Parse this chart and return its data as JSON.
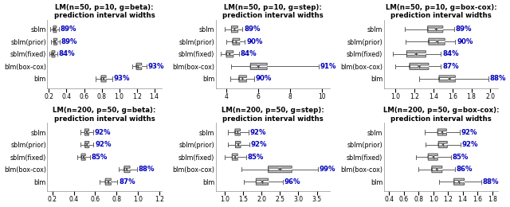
{
  "panels": [
    {
      "title": "LM(n=50, p=10, g=beta):\nprediction interval widths",
      "xlim": [
        0.18,
        1.48
      ],
      "xticks": [
        0.2,
        0.4,
        0.6,
        0.8,
        1.0,
        1.2,
        1.4
      ],
      "rows": [
        {
          "label": "sblm",
          "pct": "89%",
          "med": 0.265,
          "q1": 0.25,
          "q3": 0.285,
          "whislo": 0.218,
          "whishi": 0.31
        },
        {
          "label": "sblm(prior)",
          "pct": "89%",
          "med": 0.27,
          "q1": 0.255,
          "q3": 0.292,
          "whislo": 0.225,
          "whishi": 0.32
        },
        {
          "label": "sblm(fixed)",
          "pct": "84%",
          "med": 0.25,
          "q1": 0.232,
          "q3": 0.268,
          "whislo": 0.205,
          "whishi": 0.295
        },
        {
          "label": "blm(box-cox)",
          "pct": "93%",
          "med": 1.215,
          "q1": 1.195,
          "q3": 1.255,
          "whislo": 1.15,
          "whishi": 1.31
        },
        {
          "label": "blm",
          "pct": "93%",
          "med": 0.82,
          "q1": 0.795,
          "q3": 0.85,
          "whislo": 0.735,
          "whishi": 0.92
        }
      ]
    },
    {
      "title": "LM(n=50, p=10, g=step):\nprediction interval widths",
      "xlim": [
        3.3,
        10.5
      ],
      "xticks": [
        4,
        6,
        8,
        10
      ],
      "rows": [
        {
          "label": "sblm",
          "pct": "89%",
          "med": 4.5,
          "q1": 4.3,
          "q3": 4.7,
          "whislo": 3.9,
          "whishi": 5.0
        },
        {
          "label": "sblm(prior)",
          "pct": "90%",
          "med": 4.6,
          "q1": 4.38,
          "q3": 4.82,
          "whislo": 3.98,
          "whishi": 5.15
        },
        {
          "label": "sblm(fixed)",
          "pct": "84%",
          "med": 4.18,
          "q1": 3.98,
          "q3": 4.42,
          "whislo": 3.62,
          "whishi": 4.78
        },
        {
          "label": "blm(box-cox)",
          "pct": "91%",
          "med": 6.0,
          "q1": 5.5,
          "q3": 6.55,
          "whislo": 4.3,
          "whishi": 9.8
        },
        {
          "label": "blm",
          "pct": "90%",
          "med": 5.0,
          "q1": 4.78,
          "q3": 5.25,
          "whislo": 4.25,
          "whishi": 5.75
        }
      ]
    },
    {
      "title": "LM(n=50, p=10, g=box-cox):\nprediction interval widths",
      "xlim": [
        0.88,
        2.08
      ],
      "xticks": [
        1.0,
        1.2,
        1.4,
        1.6,
        1.8,
        2.0
      ],
      "rows": [
        {
          "label": "sblm",
          "pct": "89%",
          "med": 1.43,
          "q1": 1.34,
          "q3": 1.5,
          "whislo": 1.1,
          "whishi": 1.62
        },
        {
          "label": "sblm(prior)",
          "pct": "90%",
          "med": 1.44,
          "q1": 1.35,
          "q3": 1.52,
          "whislo": 1.11,
          "whishi": 1.63
        },
        {
          "label": "sblm(fixed)",
          "pct": "84%",
          "med": 1.22,
          "q1": 1.12,
          "q3": 1.32,
          "whislo": 0.97,
          "whishi": 1.48
        },
        {
          "label": "blm(box-cox)",
          "pct": "87%",
          "med": 1.25,
          "q1": 1.15,
          "q3": 1.35,
          "whislo": 1.0,
          "whishi": 1.48
        },
        {
          "label": "blm",
          "pct": "88%",
          "med": 1.57,
          "q1": 1.46,
          "q3": 1.63,
          "whislo": 1.25,
          "whishi": 1.98
        }
      ]
    },
    {
      "title": "LM(n=200, p=50, g=beta):\nprediction interval widths",
      "xlim": [
        0.15,
        1.22
      ],
      "xticks": [
        0.2,
        0.4,
        0.6,
        0.8,
        1.0,
        1.2
      ],
      "rows": [
        {
          "label": "sblm",
          "pct": "92%",
          "med": 0.52,
          "q1": 0.502,
          "q3": 0.54,
          "whislo": 0.462,
          "whishi": 0.582
        },
        {
          "label": "sblm(prior)",
          "pct": "92%",
          "med": 0.522,
          "q1": 0.504,
          "q3": 0.542,
          "whislo": 0.465,
          "whishi": 0.585
        },
        {
          "label": "sblm(fixed)",
          "pct": "85%",
          "med": 0.488,
          "q1": 0.47,
          "q3": 0.508,
          "whislo": 0.432,
          "whishi": 0.552
        },
        {
          "label": "blm(box-cox)",
          "pct": "88%",
          "med": 0.895,
          "q1": 0.872,
          "q3": 0.925,
          "whislo": 0.82,
          "whishi": 0.992
        },
        {
          "label": "blm",
          "pct": "87%",
          "med": 0.72,
          "q1": 0.695,
          "q3": 0.748,
          "whislo": 0.64,
          "whishi": 0.808
        }
      ]
    },
    {
      "title": "LM(n=200, p=50, g=step):\nprediction interval widths",
      "xlim": [
        0.75,
        3.85
      ],
      "xticks": [
        1.0,
        1.5,
        2.0,
        2.5,
        3.0,
        3.5
      ],
      "rows": [
        {
          "label": "sblm",
          "pct": "92%",
          "med": 1.35,
          "q1": 1.28,
          "q3": 1.42,
          "whislo": 1.08,
          "whishi": 1.65
        },
        {
          "label": "sblm(prior)",
          "pct": "92%",
          "med": 1.36,
          "q1": 1.29,
          "q3": 1.43,
          "whislo": 1.09,
          "whishi": 1.66
        },
        {
          "label": "sblm(fixed)",
          "pct": "85%",
          "med": 1.28,
          "q1": 1.2,
          "q3": 1.35,
          "whislo": 1.0,
          "whishi": 1.58
        },
        {
          "label": "blm(box-cox)",
          "pct": "99%",
          "med": 2.5,
          "q1": 2.18,
          "q3": 2.82,
          "whislo": 1.45,
          "whishi": 3.52
        },
        {
          "label": "blm",
          "pct": "96%",
          "med": 2.02,
          "q1": 1.85,
          "q3": 2.18,
          "whislo": 1.52,
          "whishi": 2.58
        }
      ]
    },
    {
      "title": "LM(n=200, p=50, g=box-cox):\nprediction interval widths",
      "xlim": [
        0.33,
        1.88
      ],
      "xticks": [
        0.4,
        0.6,
        0.8,
        1.0,
        1.2,
        1.4,
        1.6,
        1.8
      ],
      "rows": [
        {
          "label": "sblm",
          "pct": "92%",
          "med": 1.12,
          "q1": 1.06,
          "q3": 1.18,
          "whislo": 0.88,
          "whishi": 1.36
        },
        {
          "label": "sblm(prior)",
          "pct": "92%",
          "med": 1.13,
          "q1": 1.07,
          "q3": 1.19,
          "whislo": 0.89,
          "whishi": 1.37
        },
        {
          "label": "sblm(fixed)",
          "pct": "85%",
          "med": 1.0,
          "q1": 0.93,
          "q3": 1.06,
          "whislo": 0.76,
          "whishi": 1.24
        },
        {
          "label": "blm(box-cox)",
          "pct": "86%",
          "med": 1.05,
          "q1": 0.98,
          "q3": 1.12,
          "whislo": 0.8,
          "whishi": 1.29
        },
        {
          "label": "blm",
          "pct": "88%",
          "med": 1.35,
          "q1": 1.28,
          "q3": 1.42,
          "whislo": 1.08,
          "whishi": 1.65
        }
      ]
    }
  ],
  "pct_color": "#0000bb",
  "box_facecolor": "#c8c8c8",
  "box_edgecolor": "#505050",
  "whisker_color": "#606060",
  "background_color": "#ffffff",
  "title_fontsize": 6.2,
  "label_fontsize": 5.8,
  "tick_fontsize": 5.5,
  "pct_fontsize": 6.2
}
